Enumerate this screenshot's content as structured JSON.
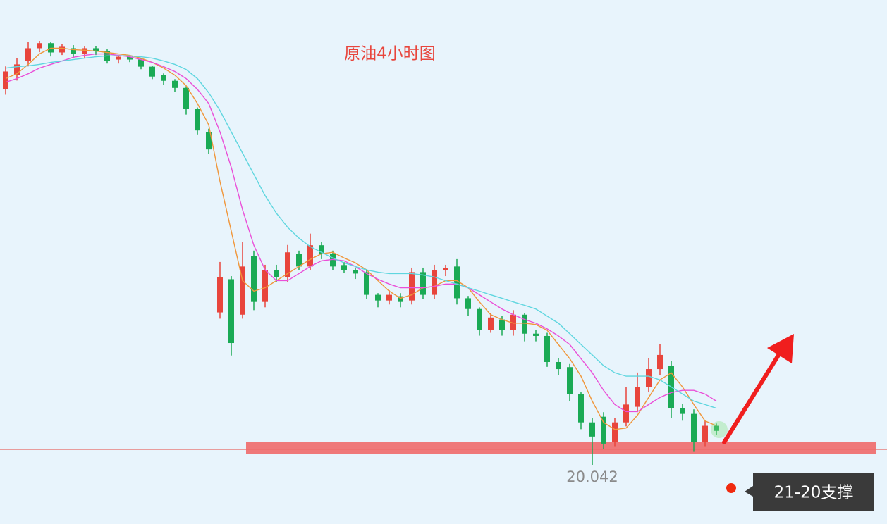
{
  "chart_data": {
    "type": "candlestick",
    "title": "原油4小时图",
    "up_color": "#e8453c",
    "down_color": "#1aaa55",
    "open": [
      33.29,
      33.79,
      34.29,
      34.74,
      34.92,
      34.59,
      34.74,
      34.54,
      34.74,
      34.64,
      34.34,
      34.44,
      34.34,
      34.09,
      33.79,
      33.59,
      33.34,
      32.59,
      31.79,
      25.42,
      26.59,
      25.34,
      27.42,
      25.79,
      26.92,
      26.67,
      27.49,
      27.04,
      27.79,
      27.49,
      27.09,
      26.92,
      26.84,
      26.04,
      25.84,
      25.99,
      25.84,
      26.84,
      26.04,
      26.92,
      27.04,
      25.92,
      25.54,
      24.79,
      25.17,
      24.79,
      25.34,
      24.67,
      24.59,
      23.67,
      23.49,
      22.54,
      21.54,
      21.74,
      20.84,
      21.54,
      22.09,
      22.79,
      23.42,
      23.54,
      22.04,
      21.84,
      20.84,
      21.42
    ],
    "high": [
      34.1,
      34.4,
      34.95,
      35.0,
      34.97,
      34.9,
      34.85,
      34.8,
      34.82,
      34.7,
      34.5,
      34.5,
      34.4,
      34.12,
      33.85,
      33.65,
      33.4,
      32.65,
      31.9,
      27.2,
      26.7,
      27.9,
      27.6,
      27.1,
      27.1,
      27.8,
      27.6,
      28.2,
      27.9,
      27.6,
      27.2,
      27.0,
      26.95,
      26.1,
      26.2,
      26.1,
      27.0,
      27.0,
      27.1,
      27.1,
      27.3,
      26.0,
      25.6,
      25.4,
      25.3,
      25.5,
      25.4,
      24.8,
      24.7,
      23.8,
      23.6,
      22.6,
      21.7,
      21.9,
      21.7,
      22.8,
      23.3,
      23.8,
      24.3,
      23.7,
      22.2,
      22.0,
      21.6,
      21.5
    ],
    "low": [
      33.1,
      33.6,
      34.1,
      34.6,
      34.45,
      34.5,
      34.4,
      34.4,
      34.5,
      34.2,
      34.2,
      34.25,
      34.0,
      33.65,
      33.45,
      33.2,
      32.4,
      31.7,
      31.0,
      25.2,
      23.9,
      25.2,
      25.5,
      25.6,
      26.5,
      26.5,
      26.9,
      26.9,
      27.3,
      26.9,
      26.8,
      26.6,
      25.9,
      25.6,
      25.7,
      25.6,
      25.7,
      25.9,
      25.9,
      26.7,
      25.7,
      25.3,
      24.6,
      24.7,
      24.6,
      24.6,
      24.4,
      24.4,
      23.5,
      23.2,
      22.3,
      21.3,
      20.042,
      20.6,
      20.7,
      21.4,
      21.9,
      22.6,
      23.2,
      21.7,
      21.6,
      20.5,
      20.7,
      21.1
    ],
    "close": [
      33.92,
      34.17,
      34.74,
      34.92,
      34.59,
      34.79,
      34.54,
      34.74,
      34.64,
      34.29,
      34.44,
      34.34,
      34.09,
      33.74,
      33.59,
      33.34,
      32.59,
      31.84,
      31.17,
      26.67,
      24.34,
      27.04,
      25.79,
      26.92,
      26.67,
      27.54,
      27.04,
      27.79,
      27.49,
      27.04,
      26.92,
      26.79,
      26.04,
      25.84,
      26.04,
      25.79,
      26.84,
      26.04,
      26.92,
      26.99,
      25.92,
      25.54,
      24.79,
      25.24,
      24.79,
      25.34,
      24.67,
      24.59,
      23.67,
      23.42,
      22.54,
      21.54,
      21.04,
      20.79,
      21.54,
      22.17,
      22.79,
      23.42,
      23.92,
      22.04,
      21.84,
      20.84,
      21.42,
      21.24
    ],
    "series": [
      {
        "color": "#f0963a",
        "values": [
          33.67,
          33.84,
          34.17,
          34.54,
          34.74,
          34.74,
          34.69,
          34.67,
          34.64,
          34.59,
          34.54,
          34.49,
          34.39,
          34.24,
          34.04,
          33.79,
          33.42,
          32.79,
          32.04,
          30.04,
          28.29,
          26.54,
          26.17,
          26.29,
          26.54,
          26.79,
          27.04,
          27.29,
          27.49,
          27.54,
          27.34,
          27.17,
          26.92,
          26.54,
          26.17,
          25.92,
          26.04,
          26.29,
          26.34,
          26.54,
          26.54,
          26.29,
          25.79,
          25.34,
          25.17,
          25.04,
          25.04,
          24.99,
          24.79,
          24.29,
          23.79,
          23.17,
          22.29,
          21.54,
          21.29,
          21.34,
          21.79,
          22.42,
          23.04,
          23.29,
          22.79,
          22.17,
          21.59,
          21.42
        ]
      },
      {
        "color": "#ea4fd8",
        "values": [
          33.54,
          33.67,
          33.84,
          34.04,
          34.17,
          34.29,
          34.42,
          34.49,
          34.54,
          34.54,
          34.49,
          34.44,
          34.34,
          34.24,
          34.09,
          33.92,
          33.67,
          33.29,
          32.79,
          31.79,
          30.54,
          29.04,
          27.79,
          26.92,
          26.54,
          26.54,
          26.79,
          27.04,
          27.24,
          27.29,
          27.24,
          27.04,
          26.79,
          26.59,
          26.42,
          26.29,
          26.29,
          26.29,
          26.34,
          26.42,
          26.42,
          26.29,
          26.04,
          25.79,
          25.54,
          25.34,
          25.17,
          25.04,
          24.84,
          24.59,
          24.29,
          23.79,
          23.29,
          22.67,
          22.17,
          21.92,
          21.92,
          22.17,
          22.42,
          22.59,
          22.67,
          22.67,
          22.54,
          22.29
        ]
      },
      {
        "color": "#5fd6df",
        "values": [
          34.04,
          34.09,
          34.12,
          34.17,
          34.24,
          34.29,
          34.34,
          34.39,
          34.44,
          34.47,
          34.47,
          34.47,
          34.44,
          34.39,
          34.29,
          34.17,
          33.99,
          33.67,
          33.17,
          32.54,
          31.79,
          31.04,
          30.29,
          29.54,
          28.92,
          28.42,
          28.04,
          27.74,
          27.54,
          27.34,
          27.17,
          27.04,
          26.92,
          26.84,
          26.79,
          26.79,
          26.79,
          26.74,
          26.67,
          26.54,
          26.42,
          26.29,
          26.17,
          26.04,
          25.92,
          25.79,
          25.67,
          25.54,
          25.29,
          25.04,
          24.67,
          24.29,
          23.92,
          23.54,
          23.29,
          23.17,
          23.17,
          23.17,
          23.04,
          22.79,
          22.54,
          22.29,
          22.17,
          22.04
        ]
      }
    ],
    "support_band": [
      20.42,
      20.84
    ],
    "support_line": 20.59,
    "annotation": "21-20支撑"
  }
}
